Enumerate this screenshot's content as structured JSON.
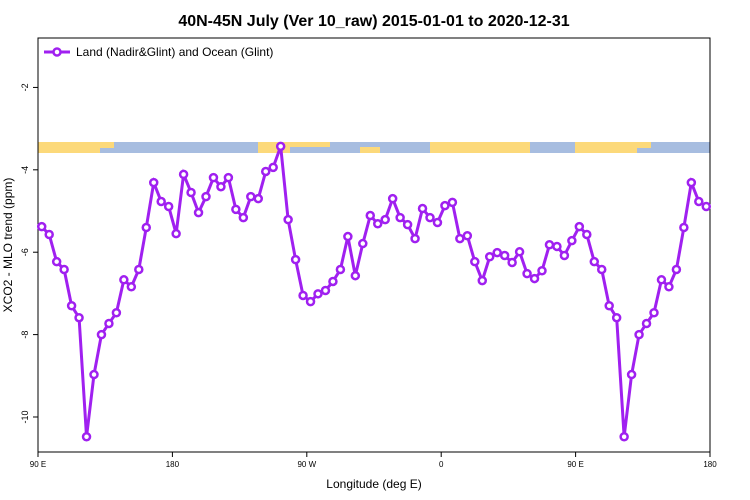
{
  "chart_data": {
    "type": "line",
    "title": "40N-45N July (Ver 10_raw)   2015-01-01 to 2020-12-31",
    "x_label": "Longitude (deg E)",
    "y_label": "XCO2 - MLO trend (ppm)",
    "x": [
      92.5,
      97.5,
      102.5,
      107.5,
      112.5,
      117.5,
      122.5,
      127.5,
      132.5,
      137.5,
      142.5,
      147.5,
      152.5,
      157.5,
      162.5,
      167.5,
      172.5,
      177.5,
      182.5,
      187.5,
      192.5,
      197.5,
      202.5,
      207.5,
      212.5,
      217.5,
      222.5,
      227.5,
      232.5,
      237.5,
      242.5,
      247.5,
      252.5,
      257.5,
      262.5,
      267.5,
      272.5,
      277.5,
      282.5,
      287.5,
      292.5,
      297.5,
      302.5,
      307.5,
      312.5,
      317.5,
      322.5,
      327.5,
      332.5,
      337.5,
      342.5,
      347.5,
      352.5,
      357.5,
      362.5,
      367.5,
      372.5,
      377.5,
      382.5,
      387.5,
      392.5,
      397.5,
      402.5,
      407.5,
      412.5,
      417.5,
      422.5,
      427.5,
      432.5,
      437.5,
      442.5,
      447.5,
      452.5,
      457.5,
      462.5,
      467.5,
      472.5,
      477.5,
      482.5,
      487.5,
      492.5,
      497.5,
      502.5,
      507.5,
      512.5,
      517.5,
      522.5,
      527.5,
      532.5,
      537.5
    ],
    "series": [
      {
        "name": "Land (Nadir&Glint) and Ocean (Glint)",
        "color": "#a020f0",
        "values": [
          -5.38,
          -5.57,
          -6.23,
          -6.42,
          -7.3,
          -7.59,
          -10.48,
          -8.97,
          -8.0,
          -7.73,
          -7.47,
          -6.67,
          -6.84,
          -6.42,
          -5.4,
          -4.31,
          -4.77,
          -4.89,
          -5.55,
          -4.11,
          -4.55,
          -5.04,
          -4.65,
          -4.19,
          -4.41,
          -4.19,
          -4.96,
          -5.16,
          -4.65,
          -4.7,
          -4.04,
          -3.94,
          -3.43,
          -5.21,
          -6.18,
          -7.05,
          -7.2,
          -7.01,
          -6.93,
          -6.71,
          -6.42,
          -5.62,
          -6.57,
          -5.79,
          -5.11,
          -5.31,
          -5.21,
          -4.7,
          -5.16,
          -5.33,
          -5.67,
          -4.94,
          -5.16,
          -5.28,
          -4.87,
          -4.79,
          -5.67,
          -5.6,
          -6.23,
          -6.69,
          -6.11,
          -6.01,
          -6.08,
          -6.25,
          -5.99,
          -6.52,
          -6.64,
          -6.45,
          -5.82,
          -5.86,
          -6.08,
          -5.72,
          -5.38,
          -5.57,
          -6.23,
          -6.42,
          -7.3,
          -7.59,
          -10.48,
          -8.97,
          -8.0,
          -7.73,
          -7.47,
          -6.67,
          -6.84,
          -6.42,
          -5.4,
          -4.31,
          -4.77,
          -4.89
        ]
      }
    ],
    "xlim": [
      90,
      540
    ],
    "xticks": [
      {
        "value": 90,
        "label": "90 E"
      },
      180,
      {
        "value": 270,
        "label": "90 W"
      },
      {
        "value": 360,
        "label": "0"
      },
      {
        "value": 450,
        "label": "90 E"
      },
      {
        "value": 540,
        "label": "180"
      }
    ],
    "ylim": [
      -10.85,
      -0.8
    ],
    "yticks": [
      -2,
      -4,
      -6,
      -8,
      -10
    ],
    "legend": "upper left"
  }
}
